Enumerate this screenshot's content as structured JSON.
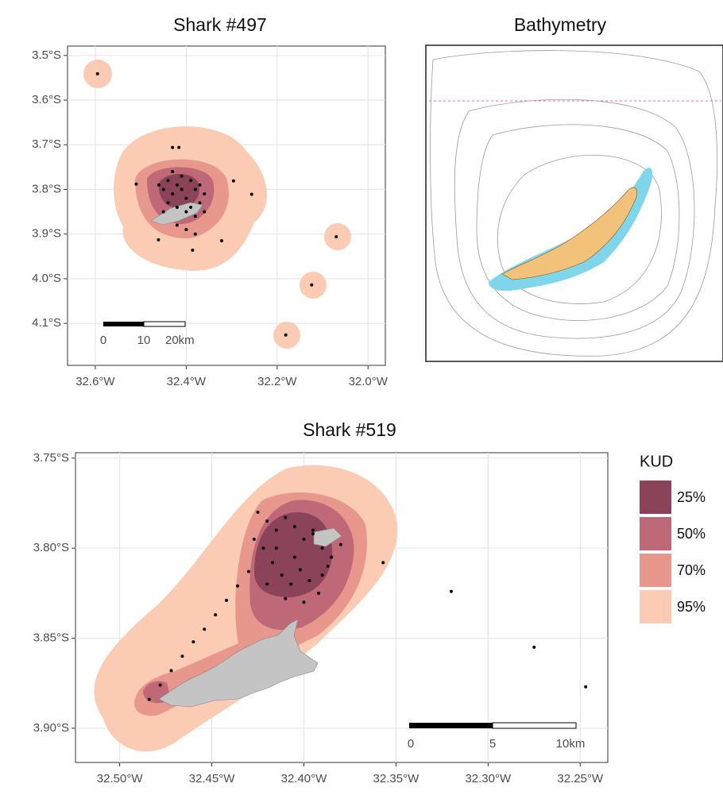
{
  "maps": [
    {
      "title": "Shark #497",
      "xlim": [
        -32.661,
        -31.962
      ],
      "ylim": [
        -4.194,
        -3.479
      ],
      "xticks": [
        {
          "value": -32.6,
          "label": "32.6°W"
        },
        {
          "value": -32.4,
          "label": "32.4°W"
        },
        {
          "value": -32.2,
          "label": "32.2°W"
        },
        {
          "value": -32.0,
          "label": "32.0°W"
        }
      ],
      "yticks": [
        {
          "value": -3.5,
          "label": "3.5°S"
        },
        {
          "value": -3.6,
          "label": "3.6°S"
        },
        {
          "value": -3.7,
          "label": "3.7°S"
        },
        {
          "value": -3.8,
          "label": "3.8°S"
        },
        {
          "value": -3.9,
          "label": "3.9°S"
        },
        {
          "value": -4.0,
          "label": "4.0°S"
        },
        {
          "value": -4.1,
          "label": "4.1°S"
        }
      ],
      "points": {
        "lon": [
          -32.595,
          -32.43,
          -32.416,
          -32.296,
          -32.256,
          -32.07,
          -32.124,
          -32.181,
          -32.51,
          -32.461,
          -32.386,
          -32.322,
          -32.46,
          -32.45,
          -32.44,
          -32.43,
          -32.42,
          -32.41,
          -32.4,
          -32.39,
          -32.38,
          -32.37,
          -32.36,
          -32.42,
          -32.4,
          -32.38,
          -32.44,
          -32.41,
          -32.39,
          -32.37,
          -32.43,
          -32.4,
          -32.42,
          -32.36,
          -32.45,
          -32.38
        ],
        "lat": [
          -3.541,
          -3.706,
          -3.706,
          -3.781,
          -3.811,
          -3.906,
          -4.014,
          -4.126,
          -3.788,
          -3.913,
          -3.936,
          -3.915,
          -3.79,
          -3.8,
          -3.78,
          -3.81,
          -3.79,
          -3.8,
          -3.82,
          -3.78,
          -3.8,
          -3.83,
          -3.81,
          -3.84,
          -3.85,
          -3.86,
          -3.83,
          -3.77,
          -3.84,
          -3.79,
          -3.76,
          -3.89,
          -3.88,
          -3.85,
          -3.85,
          -3.9
        ]
      },
      "scale_bar": [
        "0",
        "10",
        "20km"
      ]
    },
    {
      "title": "Shark #519",
      "xlim": [
        -32.524,
        -32.235
      ],
      "ylim": [
        -3.919,
        -3.747
      ],
      "xticks": [
        {
          "value": -32.5,
          "label": "32.50°W"
        },
        {
          "value": -32.45,
          "label": "32.45°W"
        },
        {
          "value": -32.4,
          "label": "32.40°W"
        },
        {
          "value": -32.35,
          "label": "32.35°W"
        },
        {
          "value": -32.3,
          "label": "32.30°W"
        },
        {
          "value": -32.25,
          "label": "32.25°W"
        }
      ],
      "yticks": [
        {
          "value": -3.75,
          "label": "3.75°S"
        },
        {
          "value": -3.8,
          "label": "3.80°S"
        },
        {
          "value": -3.85,
          "label": "3.85°S"
        },
        {
          "value": -3.9,
          "label": "3.90°S"
        }
      ],
      "points": {
        "lon": [
          -32.484,
          -32.478,
          -32.472,
          -32.466,
          -32.46,
          -32.454,
          -32.448,
          -32.442,
          -32.436,
          -32.43,
          -32.425,
          -32.42,
          -32.415,
          -32.41,
          -32.405,
          -32.4,
          -32.395,
          -32.39,
          -32.385,
          -32.38,
          -32.422,
          -32.417,
          -32.412,
          -32.407,
          -32.402,
          -32.397,
          -32.392,
          -32.387,
          -32.427,
          -32.41,
          -32.4,
          -32.39,
          -32.415,
          -32.405,
          -32.395,
          -32.42,
          -32.357,
          -32.32,
          -32.275,
          -32.247
        ],
        "lat": [
          -3.884,
          -3.876,
          -3.868,
          -3.86,
          -3.852,
          -3.845,
          -3.837,
          -3.829,
          -3.821,
          -3.813,
          -3.78,
          -3.785,
          -3.79,
          -3.783,
          -3.788,
          -3.795,
          -3.79,
          -3.8,
          -3.805,
          -3.798,
          -3.8,
          -3.808,
          -3.815,
          -3.82,
          -3.812,
          -3.818,
          -3.825,
          -3.81,
          -3.795,
          -3.828,
          -3.83,
          -3.815,
          -3.8,
          -3.805,
          -3.792,
          -3.82,
          -3.808,
          -3.824,
          -3.855,
          -3.877
        ]
      },
      "scale_bar": [
        "0",
        "5",
        "10km"
      ]
    }
  ],
  "bathymetry": {
    "title": "Bathymetry"
  },
  "legend": {
    "title": "KUD",
    "items": [
      {
        "label": "25%",
        "color": "#8a4359"
      },
      {
        "label": "50%",
        "color": "#bf6878"
      },
      {
        "label": "70%",
        "color": "#e8978c"
      },
      {
        "label": "95%",
        "color": "#fbcbb4"
      }
    ]
  }
}
